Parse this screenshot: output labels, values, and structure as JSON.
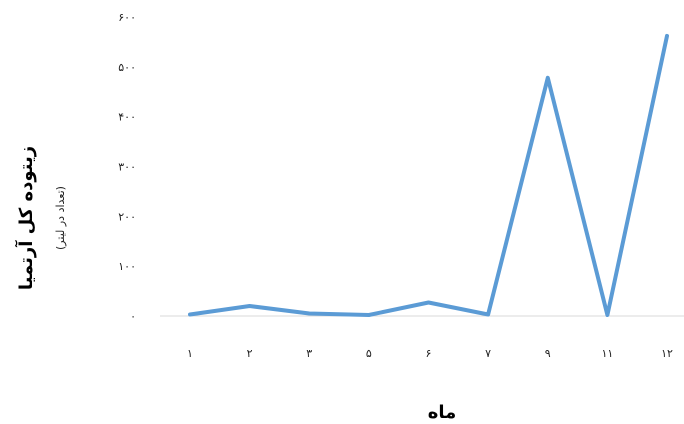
{
  "chart_data": {
    "type": "line",
    "title": "",
    "xlabel": "ماه",
    "ylabel": "زیتوده کل آرتمیا",
    "ylabel_sub": "(تعداد در لیتر)",
    "categories": [
      "۱",
      "۲",
      "۳",
      "۵",
      "۶",
      "۷",
      "۹",
      "۱۱",
      "۱۲"
    ],
    "yticks": [
      "۰",
      "۱۰۰",
      "۲۰۰",
      "۳۰۰",
      "۴۰۰",
      "۵۰۰",
      "۶۰۰"
    ],
    "ylim": [
      0,
      600
    ],
    "grid": false,
    "legend": "none",
    "series": [
      {
        "values": [
          3,
          20,
          5,
          2,
          27,
          3,
          478,
          2,
          562
        ]
      }
    ],
    "colors": {
      "line": "#5b9bd5",
      "axis": "#d9d9d9"
    }
  }
}
